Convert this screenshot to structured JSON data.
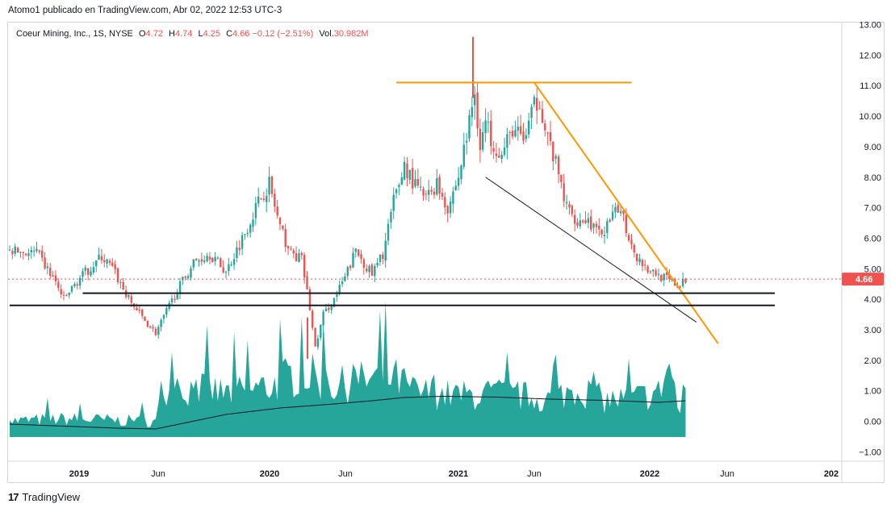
{
  "header": {
    "published_line": "Atomo1 publicado en TradingView.com, Abr 02, 2022 12:53 UTC-3"
  },
  "legend": {
    "symbol": "Coeur Mining, Inc., 1S, NYSE",
    "open_label": "O",
    "open_value": "4.72",
    "high_label": "H",
    "high_value": "4.74",
    "low_label": "L",
    "low_value": "4.25",
    "close_label": "C",
    "close_value": "4.66",
    "change": "−0.12 (−2.51%)",
    "volume_label": "Vol.",
    "volume_value": "30.982M"
  },
  "footer": {
    "brand": "TradingView"
  },
  "colors": {
    "up": "#26a69a",
    "down": "#ef5350",
    "volume": "#26a69a",
    "orange": "#ff9800",
    "price_line": "#ef5350",
    "support": "#131722"
  },
  "chart_data": {
    "type": "candlestick",
    "symbol": "Coeur Mining, Inc.",
    "timeframe": "1S",
    "exchange": "NYSE",
    "last_price": 4.66,
    "last_price_label": "4.66",
    "y_range": [
      -1.3,
      13.1
    ],
    "y_ticks": [
      "13.00",
      "12.00",
      "11.00",
      "10.00",
      "9.00",
      "8.00",
      "7.00",
      "6.00",
      "5.00",
      "4.00",
      "3.00",
      "2.00",
      "1.00",
      "0.00",
      "−1.00"
    ],
    "x_ticks": [
      "2019",
      "Jun",
      "2020",
      "Jun",
      "2021",
      "Jun",
      "2022",
      "Jun",
      "202"
    ],
    "x_tick_bold": [
      true,
      false,
      true,
      false,
      true,
      false,
      true,
      false,
      true
    ],
    "price_anchors": [
      [
        0,
        5.6
      ],
      [
        10,
        5.5
      ],
      [
        16,
        4.7
      ],
      [
        20,
        4.0
      ],
      [
        26,
        4.7
      ],
      [
        34,
        5.4
      ],
      [
        38,
        5.0
      ],
      [
        44,
        4.0
      ],
      [
        50,
        3.3
      ],
      [
        54,
        2.9
      ],
      [
        58,
        3.6
      ],
      [
        62,
        4.3
      ],
      [
        68,
        5.2
      ],
      [
        74,
        5.5
      ],
      [
        80,
        4.9
      ],
      [
        86,
        6.0
      ],
      [
        92,
        7.2
      ],
      [
        96,
        7.8
      ],
      [
        100,
        6.3
      ],
      [
        104,
        5.5
      ],
      [
        108,
        5.3
      ],
      [
        111,
        3.7
      ],
      [
        113,
        2.4
      ],
      [
        116,
        3.5
      ],
      [
        120,
        4.0
      ],
      [
        124,
        4.7
      ],
      [
        128,
        5.6
      ],
      [
        134,
        4.8
      ],
      [
        138,
        5.5
      ],
      [
        142,
        7.2
      ],
      [
        146,
        8.4
      ],
      [
        150,
        7.7
      ],
      [
        154,
        7.3
      ],
      [
        158,
        7.8
      ],
      [
        162,
        7.0
      ],
      [
        166,
        8.0
      ],
      [
        170,
        9.8
      ],
      [
        172,
        10.8
      ],
      [
        174,
        9.0
      ],
      [
        176,
        9.8
      ],
      [
        178,
        9.3
      ],
      [
        182,
        8.7
      ],
      [
        186,
        9.6
      ],
      [
        190,
        9.2
      ],
      [
        194,
        10.3
      ],
      [
        196,
        10.6
      ],
      [
        198,
        9.6
      ],
      [
        202,
        8.4
      ],
      [
        206,
        7.0
      ],
      [
        210,
        6.6
      ],
      [
        214,
        6.6
      ],
      [
        218,
        6.1
      ],
      [
        222,
        6.5
      ],
      [
        226,
        7.1
      ],
      [
        228,
        6.3
      ],
      [
        232,
        5.4
      ],
      [
        236,
        5.0
      ],
      [
        240,
        4.8
      ],
      [
        244,
        4.6
      ],
      [
        248,
        4.4
      ],
      [
        250,
        4.66
      ]
    ],
    "volume_anchors": [
      [
        0,
        2.2
      ],
      [
        20,
        2.5
      ],
      [
        40,
        2.3
      ],
      [
        54,
        2.1
      ],
      [
        56,
        6.0
      ],
      [
        70,
        6.8
      ],
      [
        80,
        6.0
      ],
      [
        96,
        7.0
      ],
      [
        108,
        9.0
      ],
      [
        120,
        7.0
      ],
      [
        134,
        8.0
      ],
      [
        142,
        8.2
      ],
      [
        150,
        6.2
      ],
      [
        160,
        5.9
      ],
      [
        170,
        5.7
      ],
      [
        180,
        6.0
      ],
      [
        190,
        5.6
      ],
      [
        200,
        5.2
      ],
      [
        210,
        6.8
      ],
      [
        220,
        5.1
      ],
      [
        230,
        5.3
      ],
      [
        240,
        6.1
      ],
      [
        244,
        10.0
      ],
      [
        248,
        3.0
      ],
      [
        250,
        7.8
      ]
    ],
    "volume_ma": [
      [
        0,
        1.6
      ],
      [
        40,
        1.1
      ],
      [
        54,
        1.0
      ],
      [
        80,
        2.8
      ],
      [
        100,
        3.6
      ],
      [
        120,
        4.1
      ],
      [
        134,
        4.5
      ],
      [
        146,
        4.9
      ],
      [
        160,
        5.05
      ],
      [
        180,
        4.95
      ],
      [
        200,
        4.7
      ],
      [
        220,
        4.55
      ],
      [
        240,
        4.3
      ],
      [
        250,
        4.5
      ]
    ],
    "drawings": {
      "resistance_horizontal": {
        "from": [
          143,
          11.1
        ],
        "to": [
          230,
          11.1
        ]
      },
      "downtrend_upper": {
        "from": [
          194,
          11.1
        ],
        "to": [
          262,
          2.55
        ]
      },
      "downtrend_lower": {
        "from": [
          176,
          8.0
        ],
        "to": [
          254,
          3.25
        ]
      },
      "support_upper": {
        "from": [
          27,
          4.2
        ],
        "to": [
          283,
          4.2
        ]
      },
      "support_lower": {
        "from": [
          0,
          3.8
        ],
        "to": [
          283,
          3.8
        ]
      }
    }
  }
}
